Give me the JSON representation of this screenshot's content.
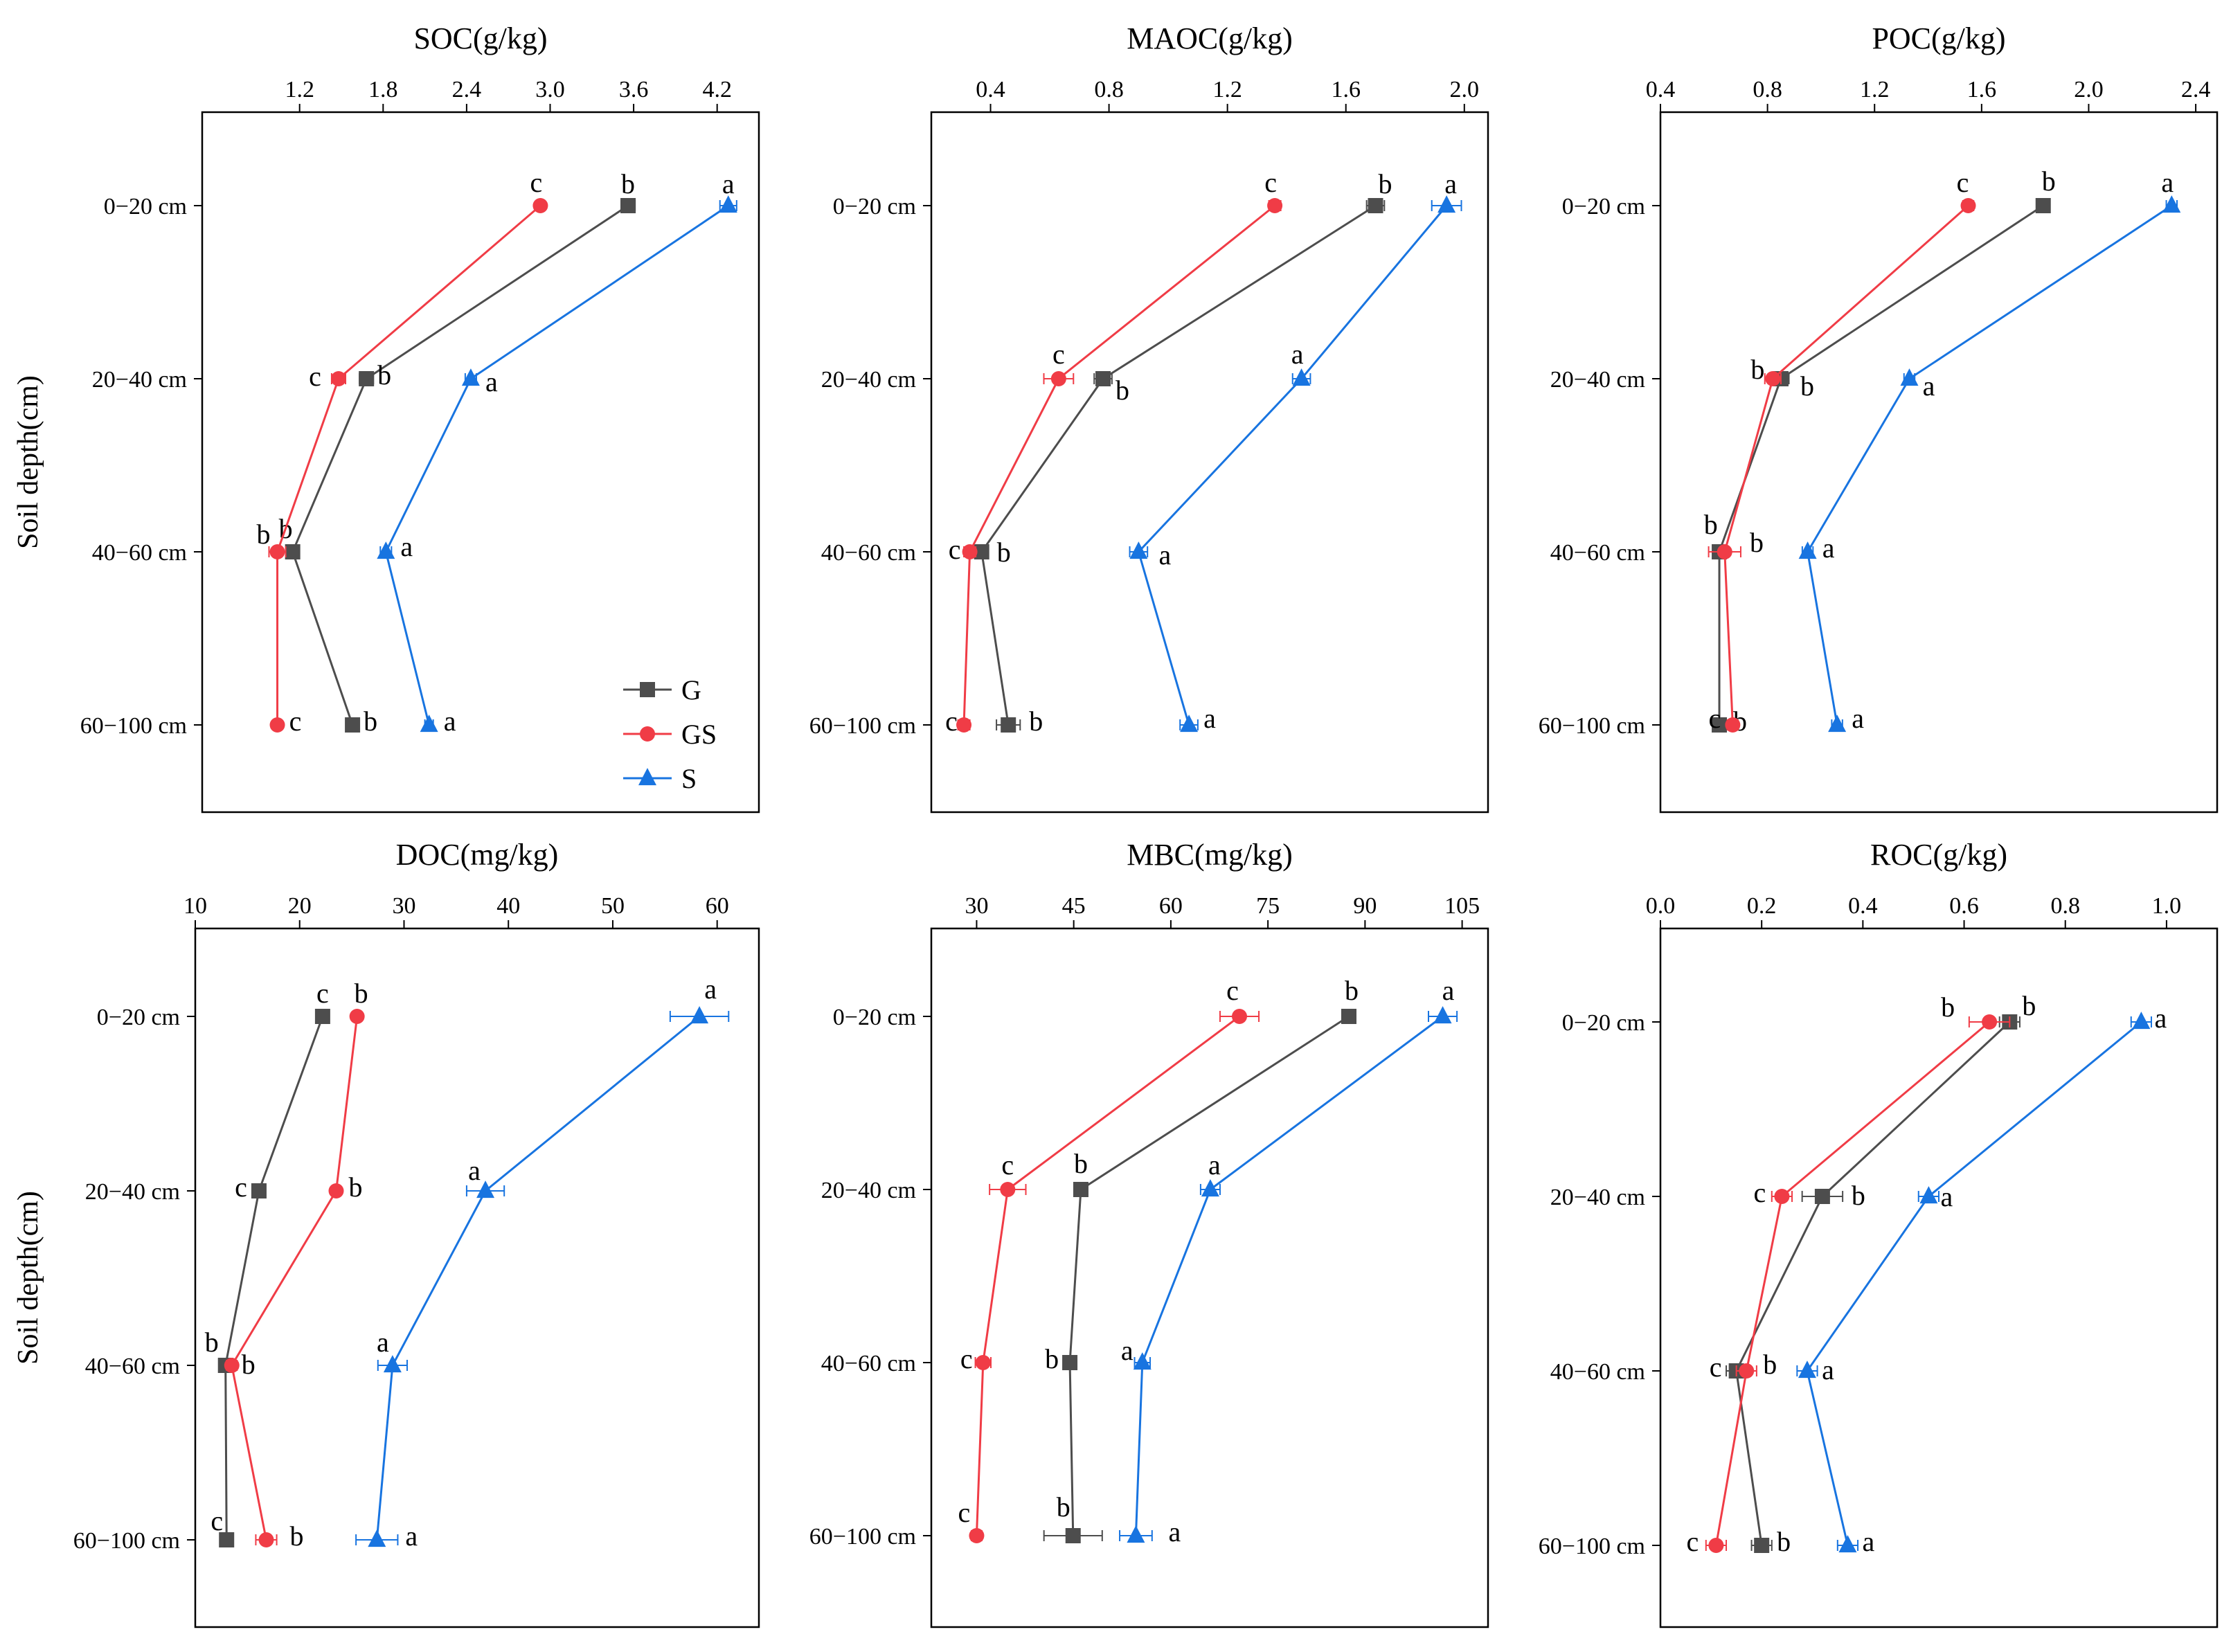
{
  "figure": {
    "y_axis_title": "Soil depth(cm)",
    "depth_labels": [
      "0−20 cm",
      "20−40 cm",
      "40−60 cm",
      "60−100 cm"
    ],
    "legend": [
      {
        "name": "G",
        "marker": "square",
        "color": "#4d4d4d"
      },
      {
        "name": "GS",
        "marker": "circle",
        "color": "#f03c46"
      },
      {
        "name": "S",
        "marker": "triangle",
        "color": "#1874e0"
      }
    ]
  },
  "chart_data": [
    {
      "type": "line",
      "title": "SOC(g/kg)",
      "xlabel": "SOC(g/kg)",
      "ylabel": "Soil depth(cm)",
      "categories": [
        "0−20 cm",
        "20−40 cm",
        "40−60 cm",
        "60−100 cm"
      ],
      "xlim": [
        0.5,
        4.5
      ],
      "xticks": [
        1.2,
        1.8,
        2.4,
        3.0,
        3.6,
        4.2
      ],
      "xtick_labels": [
        "1.2",
        "1.8",
        "2.4",
        "3.0",
        "3.6",
        "4.2"
      ],
      "series": [
        {
          "name": "G",
          "values": [
            3.56,
            1.68,
            1.15,
            1.58
          ],
          "errors": [
            0.05,
            0.05,
            0.04,
            0.03
          ],
          "letters": [
            "b",
            "b",
            "b",
            "b"
          ]
        },
        {
          "name": "GS",
          "values": [
            2.93,
            1.48,
            1.04,
            1.04
          ],
          "errors": [
            0.03,
            0.05,
            0.06,
            0.02
          ],
          "letters": [
            "c",
            "c",
            "b",
            "c"
          ]
        },
        {
          "name": "S",
          "values": [
            4.28,
            2.43,
            1.82,
            2.13
          ],
          "errors": [
            0.06,
            0.04,
            0.04,
            0.03
          ],
          "letters": [
            "a",
            "a",
            "a",
            "a"
          ]
        }
      ],
      "legend_position": "bottom-right"
    },
    {
      "type": "line",
      "title": "MAOC(g/kg)",
      "xlabel": "MAOC(g/kg)",
      "ylabel": "Soil depth(cm)",
      "categories": [
        "0−20 cm",
        "20−40 cm",
        "40−60 cm",
        "60−100 cm"
      ],
      "xlim": [
        0.2,
        2.08
      ],
      "xticks": [
        0.4,
        0.8,
        1.2,
        1.6,
        2.0
      ],
      "xtick_labels": [
        "0.4",
        "0.8",
        "1.2",
        "1.6",
        "2.0"
      ],
      "series": [
        {
          "name": "G",
          "values": [
            1.7,
            0.78,
            0.37,
            0.46
          ],
          "errors": [
            0.03,
            0.03,
            0.02,
            0.04
          ],
          "letters": [
            "b",
            "b",
            "b",
            "b"
          ]
        },
        {
          "name": "GS",
          "values": [
            1.36,
            0.63,
            0.33,
            0.31
          ],
          "errors": [
            0.02,
            0.05,
            0.02,
            0.02
          ],
          "letters": [
            "c",
            "c",
            "c",
            "c"
          ]
        },
        {
          "name": "S",
          "values": [
            1.94,
            1.45,
            0.9,
            1.07
          ],
          "errors": [
            0.05,
            0.03,
            0.03,
            0.03
          ],
          "letters": [
            "a",
            "a",
            "a",
            "a"
          ]
        }
      ]
    },
    {
      "type": "line",
      "title": "POC(g/kg)",
      "xlabel": "POC(g/kg)",
      "ylabel": "Soil depth(cm)",
      "categories": [
        "0−20 cm",
        "20−40 cm",
        "40−60 cm",
        "60−100 cm"
      ],
      "xlim": [
        0.4,
        2.48
      ],
      "xticks": [
        0.4,
        0.8,
        1.2,
        1.6,
        2.0,
        2.4
      ],
      "xtick_labels": [
        "0.4",
        "0.8",
        "1.2",
        "1.6",
        "2.0",
        "2.4"
      ],
      "series": [
        {
          "name": "G",
          "values": [
            1.83,
            0.85,
            0.62,
            0.62
          ],
          "errors": [
            0.02,
            0.03,
            0.02,
            0.02
          ],
          "letters": [
            "b",
            "b",
            "b",
            "b"
          ]
        },
        {
          "name": "GS",
          "values": [
            1.55,
            0.82,
            0.64,
            0.67
          ],
          "errors": [
            0.02,
            0.03,
            0.06,
            0.02
          ],
          "letters": [
            "c",
            "b",
            "b",
            "c"
          ]
        },
        {
          "name": "S",
          "values": [
            2.31,
            1.33,
            0.95,
            1.06
          ],
          "errors": [
            0.02,
            0.02,
            0.02,
            0.02
          ],
          "letters": [
            "a",
            "a",
            "a",
            "a"
          ]
        }
      ]
    },
    {
      "type": "line",
      "title": "DOC(mg/kg)",
      "xlabel": "DOC(mg/kg)",
      "ylabel": "Soil depth(cm)",
      "categories": [
        "0−20 cm",
        "20−40 cm",
        "40−60 cm",
        "60−100 cm"
      ],
      "xlim": [
        10,
        64
      ],
      "xticks": [
        10,
        20,
        30,
        40,
        50,
        60
      ],
      "xtick_labels": [
        "10",
        "20",
        "30",
        "40",
        "50",
        "60"
      ],
      "series": [
        {
          "name": "G",
          "values": [
            22.2,
            16.1,
            12.9,
            13.0
          ],
          "errors": [
            0.3,
            0.4,
            0.4,
            0.4
          ],
          "letters": [
            "c",
            "c",
            "b",
            "c"
          ]
        },
        {
          "name": "GS",
          "values": [
            25.5,
            23.5,
            13.5,
            16.8
          ],
          "errors": [
            0.4,
            0.4,
            0.5,
            1.0
          ],
          "letters": [
            "b",
            "b",
            "b",
            "b"
          ]
        },
        {
          "name": "S",
          "values": [
            58.3,
            37.8,
            28.9,
            27.4
          ],
          "errors": [
            2.8,
            1.8,
            1.4,
            2.0
          ],
          "letters": [
            "a",
            "a",
            "a",
            "a"
          ]
        }
      ]
    },
    {
      "type": "line",
      "title": "MBC(mg/kg)",
      "xlabel": "MBC(mg/kg)",
      "ylabel": "Soil depth(cm)",
      "categories": [
        "0−20 cm",
        "20−40 cm",
        "40−60 cm",
        "60−100 cm"
      ],
      "xlim": [
        23,
        109
      ],
      "xticks": [
        30,
        45,
        60,
        75,
        90,
        105
      ],
      "xtick_labels": [
        "30",
        "45",
        "60",
        "75",
        "90",
        "105"
      ],
      "series": [
        {
          "name": "G",
          "values": [
            87.5,
            46.1,
            44.4,
            44.9
          ],
          "errors": [
            1.0,
            1.0,
            0.8,
            4.5
          ],
          "letters": [
            "b",
            "b",
            "b",
            "b"
          ]
        },
        {
          "name": "GS",
          "values": [
            70.6,
            34.8,
            31.0,
            30.0
          ],
          "errors": [
            3.0,
            2.8,
            1.2,
            0.8
          ],
          "letters": [
            "c",
            "c",
            "c",
            "c"
          ]
        },
        {
          "name": "S",
          "values": [
            102.0,
            66.1,
            55.6,
            54.6
          ],
          "errors": [
            2.2,
            1.5,
            1.2,
            2.5
          ],
          "letters": [
            "a",
            "a",
            "a",
            "a"
          ]
        }
      ]
    },
    {
      "type": "line",
      "title": "ROC(g/kg)",
      "xlabel": "ROC(g/kg)",
      "ylabel": "Soil depth(cm)",
      "categories": [
        "0−20 cm",
        "20−40 cm",
        "40−60 cm",
        "60−100 cm"
      ],
      "xlim": [
        0.0,
        1.1
      ],
      "xticks": [
        0.0,
        0.2,
        0.4,
        0.6,
        0.8,
        1.0
      ],
      "xtick_labels": [
        "0.0",
        "0.2",
        "0.4",
        "0.6",
        "0.8",
        "1.0"
      ],
      "series": [
        {
          "name": "G",
          "values": [
            0.69,
            0.32,
            0.15,
            0.2
          ],
          "errors": [
            0.02,
            0.04,
            0.02,
            0.02
          ],
          "letters": [
            "b",
            "b",
            "c",
            "b"
          ]
        },
        {
          "name": "GS",
          "values": [
            0.65,
            0.24,
            0.17,
            0.11
          ],
          "errors": [
            0.04,
            0.02,
            0.02,
            0.02
          ],
          "letters": [
            "b",
            "c",
            "b",
            "c"
          ]
        },
        {
          "name": "S",
          "values": [
            0.95,
            0.53,
            0.29,
            0.37
          ],
          "errors": [
            0.02,
            0.02,
            0.02,
            0.02
          ],
          "letters": [
            "a",
            "a",
            "a",
            "a"
          ]
        }
      ]
    }
  ]
}
